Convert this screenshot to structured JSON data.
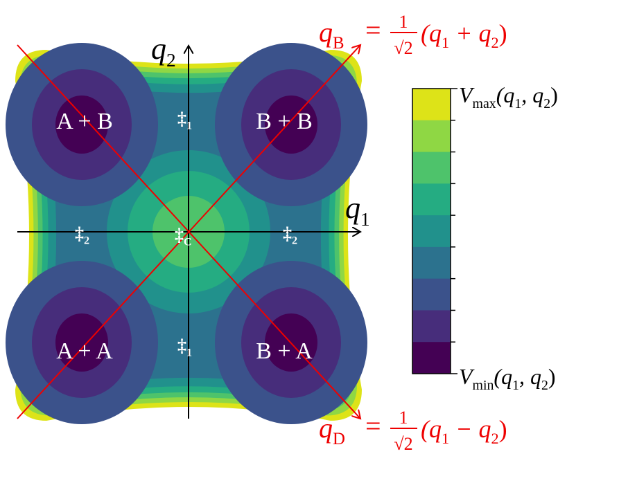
{
  "axes": {
    "horizontal": [
      {
        "text": "q"
      },
      {
        "text": "1",
        "sub": true
      }
    ],
    "vertical": [
      {
        "text": "q"
      },
      {
        "text": "2",
        "sub": true
      }
    ]
  },
  "coordinates": {
    "bright": {
      "name": [
        {
          "text": "q"
        },
        {
          "text": "B",
          "sub": true
        }
      ],
      "equals": "=",
      "numerator": "1",
      "denominator": "√2",
      "expression": [
        {
          "text": "(q"
        },
        {
          "text": "1",
          "sub": true
        },
        {
          "text": " + q"
        },
        {
          "text": "2",
          "sub": true
        },
        {
          "text": ")"
        }
      ]
    },
    "dark": {
      "name": [
        {
          "text": "q"
        },
        {
          "text": "D",
          "sub": true
        }
      ],
      "equals": "=",
      "numerator": "1",
      "denominator": "√2",
      "expression": [
        {
          "text": "(q"
        },
        {
          "text": "1",
          "sub": true
        },
        {
          "text": " − q"
        },
        {
          "text": "2",
          "sub": true
        },
        {
          "text": ")"
        }
      ]
    }
  },
  "colorbar": {
    "max": [
      {
        "text": "V"
      },
      {
        "text": "max",
        "sub": true
      },
      {
        "text": "(q"
      },
      {
        "text": "1",
        "sub": true
      },
      {
        "text": ", q"
      },
      {
        "text": "2",
        "sub": true
      },
      {
        "text": ")"
      }
    ],
    "min": [
      {
        "text": "V"
      },
      {
        "text": "min",
        "sub": true
      },
      {
        "text": "(q"
      },
      {
        "text": "1",
        "sub": true
      },
      {
        "text": ", q"
      },
      {
        "text": "2",
        "sub": true
      },
      {
        "text": ")"
      }
    ]
  },
  "minima": [
    "A + B",
    "B + B",
    "A + A",
    "B + A"
  ],
  "saddles": [
    [
      {
        "text": "‡"
      },
      {
        "text": "1",
        "sub": true
      }
    ],
    [
      {
        "text": "‡"
      },
      {
        "text": "1",
        "sub": true
      }
    ],
    [
      {
        "text": "‡"
      },
      {
        "text": "2",
        "sub": true
      }
    ],
    [
      {
        "text": "‡"
      },
      {
        "text": "2",
        "sub": true
      }
    ],
    [
      {
        "text": "‡"
      },
      {
        "text": "C",
        "sub": true
      }
    ]
  ]
}
